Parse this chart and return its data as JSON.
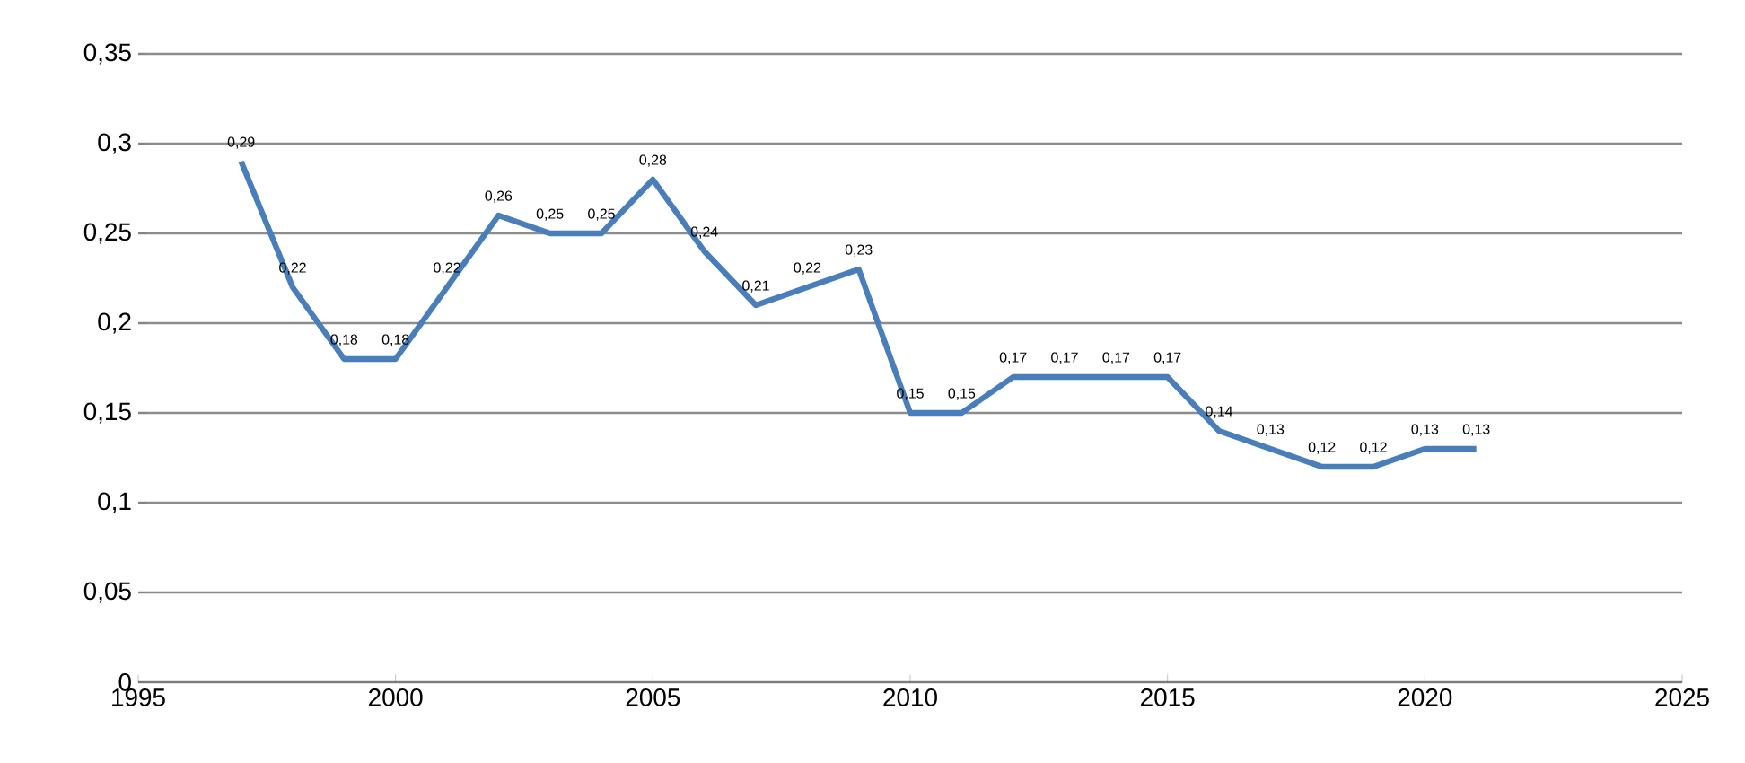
{
  "chart_data": {
    "type": "line",
    "x": [
      1997,
      1998,
      1999,
      2000,
      2001,
      2002,
      2003,
      2004,
      2005,
      2006,
      2007,
      2008,
      2009,
      2010,
      2011,
      2012,
      2013,
      2014,
      2015,
      2016,
      2017,
      2018,
      2019,
      2020,
      2021
    ],
    "series": [
      {
        "color": "#4a7ebb",
        "values": [
          0.29,
          0.22,
          0.18,
          0.18,
          0.22,
          0.26,
          0.25,
          0.25,
          0.28,
          0.24,
          0.21,
          0.22,
          0.23,
          0.15,
          0.15,
          0.17,
          0.17,
          0.17,
          0.17,
          0.14,
          0.13,
          0.12,
          0.12,
          0.13,
          0.13
        ],
        "value_labels": [
          "0,29",
          "0,22",
          "0,18",
          "0,18",
          "0,22",
          "0,26",
          "0,25",
          "0,25",
          "0,28",
          "0,24",
          "0,21",
          "0,22",
          "0,23",
          "0,15",
          "0,15",
          "0,17",
          "0,17",
          "0,17",
          "0,17",
          "0,14",
          "0,13",
          "0,12",
          "0,12",
          "0,13",
          "0,13"
        ]
      }
    ],
    "xlim": [
      1995,
      2025
    ],
    "ylim": [
      0,
      0.35
    ],
    "xticks": [
      1995,
      2000,
      2005,
      2010,
      2015,
      2020,
      2025
    ],
    "yticks": [
      {
        "value": 0,
        "label": "0"
      },
      {
        "value": 0.05,
        "label": "0,05"
      },
      {
        "value": 0.1,
        "label": "0,1"
      },
      {
        "value": 0.15,
        "label": "0,15"
      },
      {
        "value": 0.2,
        "label": "0,2"
      },
      {
        "value": 0.25,
        "label": "0,25"
      },
      {
        "value": 0.3,
        "label": "0,3"
      },
      {
        "value": 0.35,
        "label": "0,35"
      }
    ],
    "grid": "y"
  }
}
